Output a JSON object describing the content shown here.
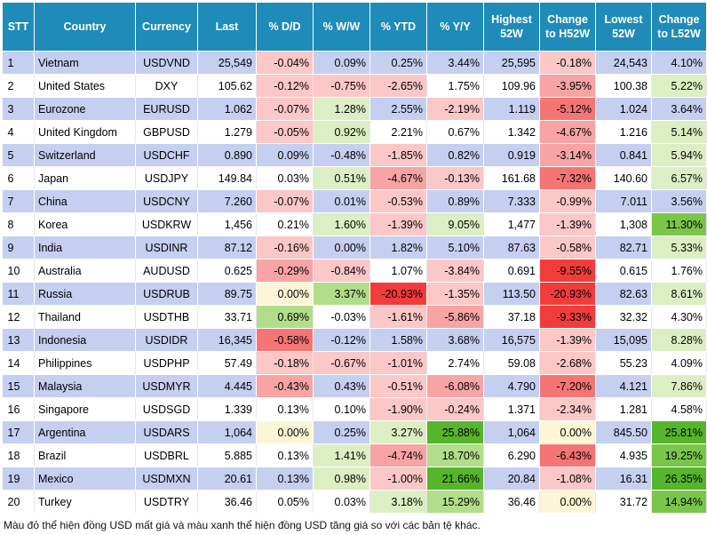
{
  "chart_data": {
    "type": "table",
    "headers": [
      "STT",
      "Country",
      "Currency",
      "Last",
      "% D/D",
      "% W/W",
      "% YTD",
      "% Y/Y",
      "Highest 52W",
      "Change to H52W",
      "Lowest 52W",
      "Change to L52W"
    ],
    "rows": [
      [
        "1",
        "Vietnam",
        "USDVND",
        "25,549",
        "-0.04%",
        "0.09%",
        "0.25%",
        "3.44%",
        "25,595",
        "-0.18%",
        "24,543",
        "4.10%"
      ],
      [
        "2",
        "United States",
        "DXY",
        "105.62",
        "-0.12%",
        "-0.75%",
        "-2.65%",
        "1.75%",
        "109.96",
        "-3.95%",
        "100.38",
        "5.22%"
      ],
      [
        "3",
        "Eurozone",
        "EURUSD",
        "1.062",
        "-0.07%",
        "1.28%",
        "2.55%",
        "-2.19%",
        "1.119",
        "-5.12%",
        "1.024",
        "3.64%"
      ],
      [
        "4",
        "United Kingdom",
        "GBPUSD",
        "1.279",
        "-0.05%",
        "0.92%",
        "2.21%",
        "0.67%",
        "1.342",
        "-4.67%",
        "1.216",
        "5.14%"
      ],
      [
        "5",
        "Switzerland",
        "USDCHF",
        "0.890",
        "0.09%",
        "-0.48%",
        "-1.85%",
        "0.82%",
        "0.919",
        "-3.14%",
        "0.841",
        "5.94%"
      ],
      [
        "6",
        "Japan",
        "USDJPY",
        "149.84",
        "0.03%",
        "0.51%",
        "-4.67%",
        "-0.13%",
        "161.68",
        "-7.32%",
        "140.60",
        "6.57%"
      ],
      [
        "7",
        "China",
        "USDCNY",
        "7.260",
        "-0.07%",
        "0.01%",
        "-0.53%",
        "0.89%",
        "7.333",
        "-0.99%",
        "7.011",
        "3.56%"
      ],
      [
        "8",
        "Korea",
        "USDKRW",
        "1,456",
        "0.21%",
        "1.60%",
        "-1.39%",
        "9.05%",
        "1,477",
        "-1.39%",
        "1,308",
        "11.30%"
      ],
      [
        "9",
        "India",
        "USDINR",
        "87.12",
        "-0.16%",
        "0.00%",
        "1.82%",
        "5.10%",
        "87.63",
        "-0.58%",
        "82.71",
        "5.33%"
      ],
      [
        "10",
        "Australia",
        "AUDUSD",
        "0.625",
        "-0.29%",
        "-0.84%",
        "1.07%",
        "-3.84%",
        "0.691",
        "-9.55%",
        "0.615",
        "1.76%"
      ],
      [
        "11",
        "Russia",
        "USDRUB",
        "89.75",
        "0.00%",
        "3.37%",
        "-20.93%",
        "-1.35%",
        "113.50",
        "-20.93%",
        "82.63",
        "8.61%"
      ],
      [
        "12",
        "Thailand",
        "USDTHB",
        "33.71",
        "0.69%",
        "-0.03%",
        "-1.61%",
        "-5.86%",
        "37.18",
        "-9.33%",
        "32.32",
        "4.30%"
      ],
      [
        "13",
        "Indonesia",
        "USDIDR",
        "16,345",
        "-0.58%",
        "-0.12%",
        "1.58%",
        "3.68%",
        "16,575",
        "-1.39%",
        "15,095",
        "8.28%"
      ],
      [
        "14",
        "Philippines",
        "USDPHP",
        "57.49",
        "-0.18%",
        "-0.67%",
        "-1.01%",
        "2.74%",
        "59.08",
        "-2.68%",
        "55.23",
        "4.09%"
      ],
      [
        "15",
        "Malaysia",
        "USDMYR",
        "4.445",
        "-0.43%",
        "0.43%",
        "-0.51%",
        "-6.08%",
        "4.790",
        "-7.20%",
        "4.121",
        "7.86%"
      ],
      [
        "16",
        "Singapore",
        "USDSGD",
        "1.339",
        "0.13%",
        "0.10%",
        "-1.90%",
        "-0.24%",
        "1.371",
        "-2.34%",
        "1.281",
        "4.58%"
      ],
      [
        "17",
        "Argentina",
        "USDARS",
        "1,064",
        "0.00%",
        "0.25%",
        "3.27%",
        "25.88%",
        "1,064",
        "0.00%",
        "845.50",
        "25.81%"
      ],
      [
        "18",
        "Brazil",
        "USDBRL",
        "5.885",
        "0.13%",
        "1.41%",
        "-4.74%",
        "18.70%",
        "6.290",
        "-6.43%",
        "4.935",
        "19.25%"
      ],
      [
        "19",
        "Mexico",
        "USDMXN",
        "20.61",
        "0.13%",
        "0.98%",
        "-1.00%",
        "21.66%",
        "20.84",
        "-1.08%",
        "16.31",
        "26.35%"
      ],
      [
        "20",
        "Turkey",
        "USDTRY",
        "36.46",
        "0.05%",
        "0.03%",
        "3.18%",
        "15.29%",
        "36.46",
        "0.00%",
        "31.72",
        "14.94%"
      ]
    ],
    "note": "Màu đỏ thể hiện đồng USD mất giá và màu xanh thể hiện đồng USD tăng giá so với các bản tệ khác."
  },
  "colors": {
    "header_bg": "#1f8bb8",
    "header_text": "#ffffff",
    "row_band": "#c5cff0",
    "red_scale": [
      "#fbc7c7",
      "#f8a4a4",
      "#f57474",
      "#f23c3c"
    ],
    "green_scale": [
      "#dcefc4",
      "#b2dd8a",
      "#7bc64a",
      "#56b52a"
    ],
    "neutral_yellow": "#fdf6d6"
  }
}
